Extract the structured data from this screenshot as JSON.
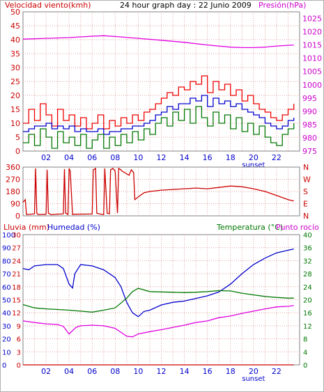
{
  "chart_data": [
    {
      "id": "wind_pressure",
      "type": "line",
      "title": "24 hour graph day : 22 Junio 2009",
      "left_label": "Velocidad viento(kmh)",
      "right_label": "Presión(hPa)",
      "x_ticks": [
        "02",
        "04",
        "06",
        "08",
        "10",
        "12",
        "14",
        "16",
        "18",
        "20",
        "22"
      ],
      "x_extra_label": "sunset",
      "left_ticks": [
        "0",
        "5",
        "10",
        "15",
        "20",
        "25",
        "30",
        "35",
        "40",
        "45",
        "50"
      ],
      "right_ticks": [
        "975",
        "980",
        "985",
        "990",
        "995",
        "1000",
        "1005",
        "1010",
        "1015",
        "1020",
        "1025"
      ],
      "x_range": [
        0,
        24
      ],
      "left_range": [
        0,
        50
      ],
      "right_range": [
        975,
        1027.5
      ],
      "series": [
        {
          "name": "Presión",
          "axis": "right",
          "color": "#e000e0",
          "x": [
            0,
            2,
            4,
            6,
            7,
            8,
            10,
            12,
            14,
            16,
            18,
            19,
            20,
            21,
            22,
            23.5
          ],
          "values": [
            1017.2,
            1017.5,
            1017.8,
            1018.3,
            1018.5,
            1018.2,
            1017.5,
            1016.8,
            1016.0,
            1015.0,
            1014.2,
            1014.0,
            1014.0,
            1014.2,
            1014.6,
            1015.0
          ]
        },
        {
          "name": "Racha",
          "axis": "left",
          "color": "#ee0000",
          "x": [
            0,
            0.5,
            1,
            1.5,
            2,
            2.5,
            3,
            3.5,
            4,
            4.5,
            5,
            5.5,
            6,
            6.5,
            7,
            7.5,
            8,
            8.5,
            9,
            9.5,
            10,
            10.5,
            11,
            11.5,
            12,
            12.5,
            13,
            13.5,
            14,
            14.5,
            15,
            15.5,
            16,
            16.5,
            17,
            17.5,
            18,
            18.5,
            19,
            19.5,
            20,
            20.5,
            21,
            21.5,
            22,
            22.5,
            23,
            23.5
          ],
          "values": [
            10,
            15,
            11,
            17,
            13,
            9,
            15,
            11,
            13,
            9,
            12,
            8,
            10,
            13,
            8,
            11,
            9,
            12,
            10,
            13,
            11,
            14,
            15,
            17,
            19,
            21,
            20,
            23,
            22,
            25,
            24,
            27,
            21,
            25,
            22,
            24,
            20,
            22,
            18,
            20,
            17,
            15,
            14,
            12,
            11,
            13,
            15,
            17
          ]
        },
        {
          "name": "Velocidad media",
          "axis": "left",
          "color": "#0000cc",
          "x": [
            0,
            0.5,
            1,
            1.5,
            2,
            2.5,
            3,
            3.5,
            4,
            4.5,
            5,
            5.5,
            6,
            6.5,
            7,
            7.5,
            8,
            8.5,
            9,
            9.5,
            10,
            10.5,
            11,
            11.5,
            12,
            12.5,
            13,
            13.5,
            14,
            14.5,
            15,
            15.5,
            16,
            16.5,
            17,
            17.5,
            18,
            18.5,
            19,
            19.5,
            20,
            20.5,
            21,
            21.5,
            22,
            22.5,
            23,
            23.5
          ],
          "values": [
            7,
            8,
            9,
            9,
            10,
            8,
            9,
            8,
            9,
            7,
            8,
            7,
            7,
            8,
            6,
            7,
            7,
            8,
            8,
            9,
            9,
            10,
            11,
            13,
            14,
            16,
            15,
            17,
            17,
            19,
            18,
            20,
            16,
            19,
            17,
            18,
            16,
            17,
            15,
            14,
            13,
            12,
            10,
            9,
            8,
            9,
            11,
            12
          ]
        },
        {
          "name": "Velocidad",
          "axis": "left",
          "color": "#007700",
          "x": [
            0,
            0.5,
            1,
            1.5,
            2,
            2.5,
            3,
            3.5,
            4,
            4.5,
            5,
            5.5,
            6,
            6.5,
            7,
            7.5,
            8,
            8.5,
            9,
            9.5,
            10,
            10.5,
            11,
            11.5,
            12,
            12.5,
            13,
            13.5,
            14,
            14.5,
            15,
            15.5,
            16,
            16.5,
            17,
            17.5,
            18,
            18.5,
            19,
            19.5,
            20,
            20.5,
            21,
            21.5,
            22,
            22.5,
            23,
            23.5
          ],
          "values": [
            3,
            6,
            2,
            8,
            5,
            1,
            7,
            3,
            5,
            2,
            6,
            1,
            4,
            6,
            1,
            5,
            2,
            6,
            3,
            7,
            4,
            8,
            6,
            10,
            12,
            9,
            14,
            11,
            15,
            10,
            16,
            12,
            9,
            14,
            10,
            13,
            8,
            12,
            7,
            10,
            6,
            9,
            5,
            3,
            2,
            6,
            8,
            10
          ]
        }
      ]
    },
    {
      "id": "direction",
      "type": "line",
      "left_ticks": [
        "0",
        "90",
        "180",
        "270",
        "360"
      ],
      "right_ticks": [
        "N",
        "E",
        "S",
        "W",
        "N"
      ],
      "x_range": [
        0,
        24
      ],
      "left_range": [
        0,
        360
      ],
      "series": [
        {
          "name": "Dirección",
          "axis": "left",
          "color": "#cc0000",
          "x": [
            0,
            0.2,
            0.3,
            1.0,
            1.1,
            1.2,
            1.3,
            2.0,
            2.1,
            2.2,
            2.4,
            3.5,
            3.6,
            3.7,
            3.9,
            4.0,
            4.1,
            4.3,
            4.4,
            6.0,
            6.1,
            6.3,
            6.4,
            6.6,
            7.0,
            7.1,
            7.3,
            7.5,
            7.6,
            7.8,
            8.0,
            8.2,
            8.3,
            8.5,
            8.6,
            9.0,
            9.2,
            9.4,
            9.6,
            9.7,
            10.0,
            10.5,
            11,
            12,
            13,
            14,
            15,
            16,
            17,
            18,
            19,
            20,
            21,
            22,
            23,
            23.5
          ],
          "values": [
            100,
            120,
            10,
            15,
            350,
            20,
            10,
            12,
            340,
            20,
            10,
            15,
            345,
            20,
            10,
            350,
            330,
            10,
            12,
            14,
            340,
            350,
            20,
            15,
            10,
            350,
            20,
            15,
            340,
            350,
            330,
            20,
            350,
            340,
            330,
            310,
            300,
            340,
            320,
            120,
            140,
            170,
            180,
            190,
            195,
            200,
            205,
            200,
            210,
            220,
            215,
            200,
            180,
            150,
            120,
            110
          ]
        }
      ]
    },
    {
      "id": "rain_humidity_temp",
      "type": "line",
      "labels": {
        "rain": "Lluvia (mm)",
        "humidity": "Humedad (%)",
        "temperature": "Temperatura (°C)",
        "dewpoint": "Punto rocío"
      },
      "x_ticks": [
        "02",
        "04",
        "06",
        "08",
        "10",
        "12",
        "14",
        "16",
        "18",
        "20",
        "22"
      ],
      "x_extra_label": "sunset",
      "humidity_ticks": [
        "0",
        "10",
        "20",
        "30",
        "40",
        "50",
        "60",
        "70",
        "80",
        "90",
        "100"
      ],
      "rain_ticks": [
        "0",
        "3",
        "6",
        "9",
        "12",
        "15",
        "18",
        "21",
        "24",
        "27",
        "30"
      ],
      "temperature_ticks": [
        "0",
        "4",
        "8",
        "12",
        "16",
        "20",
        "24",
        "28",
        "32",
        "36",
        "40"
      ],
      "x_range": [
        0,
        24
      ],
      "humidity_range": [
        0,
        100
      ],
      "temperature_range": [
        0,
        40
      ],
      "series": [
        {
          "name": "Humedad",
          "axis": "humidity",
          "color": "#0000cc",
          "x": [
            0,
            0.5,
            1,
            2,
            3,
            3.5,
            4,
            4.3,
            4.5,
            5,
            6,
            7,
            8,
            8.5,
            9,
            9.5,
            10,
            10.5,
            11,
            12,
            13,
            14,
            15,
            16,
            17,
            18,
            19,
            20,
            21,
            22,
            23,
            23.5
          ],
          "values": [
            74,
            73,
            76,
            77,
            77,
            74,
            62,
            59,
            70,
            77,
            76,
            73,
            67,
            60,
            48,
            40,
            37,
            41,
            42,
            46,
            48,
            49,
            51,
            53,
            56,
            62,
            70,
            77,
            82,
            86,
            88,
            89
          ]
        },
        {
          "name": "Temperatura",
          "axis": "temperature",
          "color": "#007700",
          "x": [
            0,
            1,
            2,
            3,
            4,
            5,
            6,
            7,
            8,
            9,
            9.5,
            10,
            11,
            12,
            13,
            14,
            15,
            16,
            17,
            18,
            19,
            20,
            21,
            22,
            23,
            23.5
          ],
          "values": [
            18.5,
            17.5,
            17.2,
            17.0,
            16.8,
            16.5,
            16.2,
            16.8,
            17.5,
            20.5,
            22.5,
            23.5,
            22.5,
            22.4,
            22.3,
            22.2,
            22.3,
            22.5,
            22.8,
            22.7,
            22.0,
            21.5,
            21.0,
            20.7,
            20.5,
            20.5
          ]
        },
        {
          "name": "Punto rocío",
          "axis": "temperature",
          "color": "#e000e0",
          "x": [
            0,
            1,
            2,
            3,
            3.5,
            4,
            4.3,
            4.6,
            5,
            6,
            7,
            8,
            8.5,
            9,
            9.5,
            10,
            11,
            12,
            13,
            14,
            15,
            16,
            17,
            18,
            19,
            20,
            21,
            22,
            23,
            23.5
          ],
          "values": [
            13.5,
            13.0,
            12.6,
            12.4,
            11.8,
            9.5,
            10.5,
            11.5,
            12.0,
            12.2,
            12.0,
            11.2,
            10.0,
            8.8,
            8.6,
            9.5,
            10.2,
            10.8,
            11.5,
            12.2,
            13.0,
            13.5,
            14.5,
            15.0,
            15.8,
            16.5,
            17.2,
            17.8,
            18.0,
            18.2
          ]
        },
        {
          "name": "Lluvia",
          "axis": "rain",
          "color": "#cc0000",
          "x": [
            0,
            23.5
          ],
          "values": [
            0,
            0
          ]
        }
      ]
    }
  ]
}
